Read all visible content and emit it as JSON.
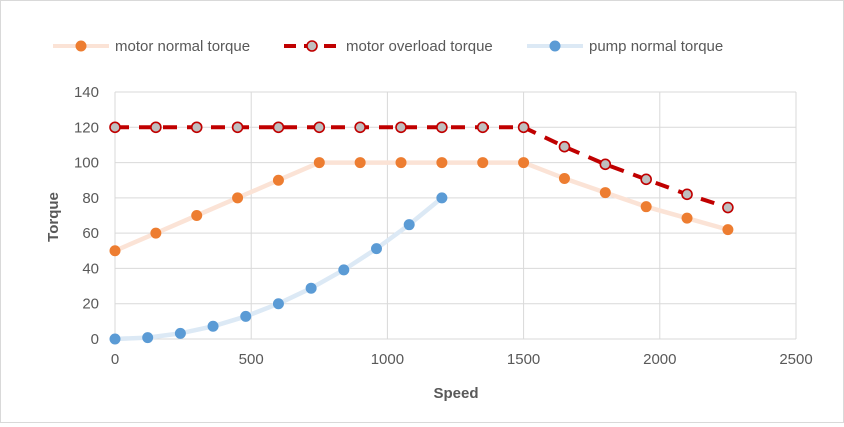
{
  "chart_data": {
    "type": "line",
    "title": "",
    "xlabel": "Speed",
    "ylabel": "Torque",
    "xlim": [
      0,
      2500
    ],
    "ylim": [
      0,
      140
    ],
    "xticks": [
      0,
      500,
      1000,
      1500,
      2000,
      2500
    ],
    "yticks": [
      0,
      20,
      40,
      60,
      80,
      100,
      120,
      140
    ],
    "grid": true,
    "legend_position": "top",
    "series": [
      {
        "name": "motor normal torque",
        "line_color": "#fbe3d6",
        "marker_color": "#ed7d31",
        "marker_stroke": "#ed7d31",
        "dashed": false,
        "x": [
          0,
          150,
          300,
          450,
          600,
          750,
          900,
          1050,
          1200,
          1350,
          1500,
          1650,
          1800,
          1950,
          2100,
          2250
        ],
        "y": [
          50,
          60,
          70,
          80,
          90,
          100,
          100,
          100,
          100,
          100,
          100,
          91,
          83,
          75,
          68.5,
          62
        ]
      },
      {
        "name": "motor overload torque",
        "line_color": "#c00000",
        "marker_color": "#bfbfbf",
        "marker_stroke": "#c00000",
        "dashed": true,
        "x": [
          0,
          150,
          300,
          450,
          600,
          750,
          900,
          1050,
          1200,
          1350,
          1500,
          1650,
          1800,
          1950,
          2100,
          2250
        ],
        "y": [
          120,
          120,
          120,
          120,
          120,
          120,
          120,
          120,
          120,
          120,
          120,
          109,
          99,
          90.5,
          82,
          74.5
        ]
      },
      {
        "name": "pump normal torque",
        "line_color": "#dce9f5",
        "marker_color": "#5b9bd5",
        "marker_stroke": "#5b9bd5",
        "dashed": false,
        "x": [
          0,
          120,
          240,
          360,
          480,
          600,
          720,
          840,
          960,
          1080,
          1200
        ],
        "y": [
          0,
          0.8,
          3.2,
          7.2,
          12.8,
          20,
          28.8,
          39.2,
          51.2,
          64.8,
          80
        ]
      }
    ]
  }
}
